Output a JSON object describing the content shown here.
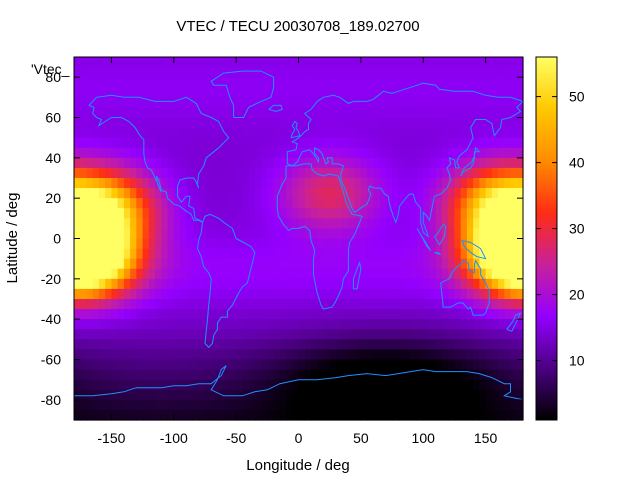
{
  "chart_data": {
    "type": "heatmap",
    "title": "VTEC / TECU 20030708_189.02700",
    "xlabel": "Longitude / deg",
    "ylabel": "Latitude / deg",
    "legend_key": "'Vtec_",
    "xlim": [
      -180,
      180
    ],
    "ylim": [
      -90,
      90
    ],
    "xticks": [
      -150,
      -100,
      -50,
      0,
      50,
      100,
      150
    ],
    "yticks": [
      -80,
      -60,
      -40,
      -20,
      0,
      20,
      40,
      60,
      80
    ],
    "colorbar": {
      "range": [
        1,
        56
      ],
      "ticks": [
        10,
        20,
        30,
        40,
        50
      ],
      "palette": [
        "#000000",
        "#4b0082",
        "#9400ff",
        "#c8219a",
        "#ff2d14",
        "#ff8c00",
        "#ffc800",
        "#ffff64"
      ]
    },
    "grid_resolution": {
      "lon_step_deg": 5,
      "lat_step_deg": 5
    },
    "features": [
      {
        "name": "equatorial anomaly crest (Pacific)",
        "lon": -172,
        "lat": -10,
        "vtec": 56
      },
      {
        "name": "northern crest (Pacific)",
        "lon": -155,
        "lat": 15,
        "vtec": 44
      },
      {
        "name": "southern crest (west Pacific)",
        "lon": 175,
        "lat": -5,
        "vtec": 52
      },
      {
        "name": "northern crest (west Pacific)",
        "lon": 160,
        "lat": 18,
        "vtec": 43
      },
      {
        "name": "Middle East / Red Sea enhancement",
        "lon": 25,
        "lat": 22,
        "vtec": 26
      },
      {
        "name": "antarctic minimum",
        "lon": 70,
        "lat": -70,
        "vtec": 1
      }
    ],
    "coastlines": "continental outlines (world map), drawn in #1e90ff"
  },
  "colors": {
    "coastline": "#1e90ff",
    "axis": "#000000"
  }
}
